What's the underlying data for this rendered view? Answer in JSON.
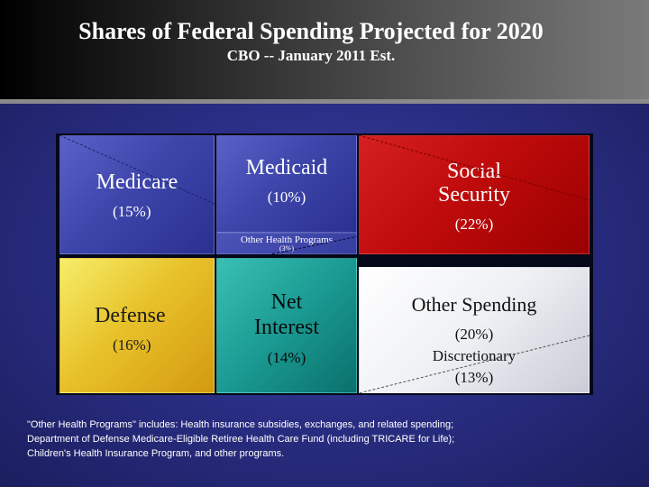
{
  "header": {
    "title": "Shares of Federal Spending Projected for 2020",
    "subtitle": "CBO -- January 2011 Est."
  },
  "chart_data": {
    "type": "treemap",
    "title": "Shares of Federal Spending Projected for 2020",
    "subtitle": "CBO -- January 2011 Est.",
    "items": [
      {
        "label": "Medicare",
        "value_label": "(15%)",
        "value": 15,
        "color": "#3e46ab"
      },
      {
        "label": "Medicaid",
        "value_label": "(10%)",
        "value": 10,
        "color": "#3e46ab"
      },
      {
        "label": "Other Health Programs",
        "value_label": "(3%)",
        "value": 3,
        "color": "#363d9f"
      },
      {
        "label_lines": [
          "Social",
          "Security"
        ],
        "label": "Social Security",
        "value_label": "(22%)",
        "value": 22,
        "color": "#bf0b0b"
      },
      {
        "label": "Defense",
        "value_label": "(16%)",
        "value": 16,
        "color": "#e8c22a"
      },
      {
        "label_lines": [
          "Net",
          "Interest"
        ],
        "label": "Net Interest",
        "value_label": "(14%)",
        "value": 14,
        "color": "#1a9a92"
      },
      {
        "label": "Other Spending",
        "value_label": "(20%)",
        "value": 20,
        "sub_label": "Discretionary",
        "sub_value_label": "(13%)",
        "sub_value": 13,
        "color": "#eef0f4"
      }
    ]
  },
  "footnote": {
    "line1": "\"Other Health Programs\" includes: Health insurance subsidies, exchanges, and related spending;",
    "line2": "Department of Defense Medicare-Eligible Retiree Health Care Fund (including TRICARE for Life);",
    "line3": "Children's Health Insurance Program, and other programs."
  }
}
